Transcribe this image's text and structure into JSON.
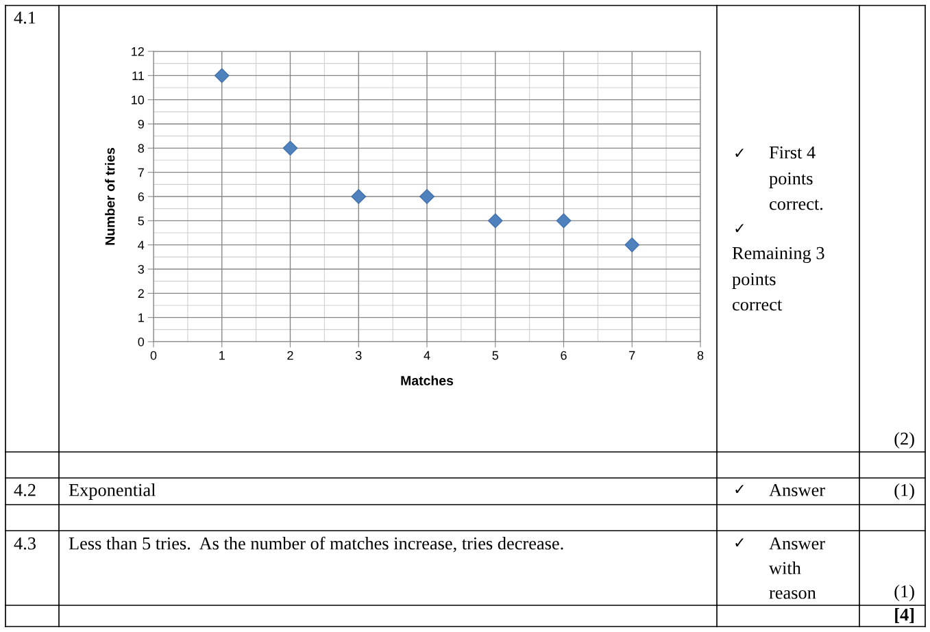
{
  "chart_data": {
    "type": "scatter",
    "xlabel": "Matches",
    "ylabel": "Number of tries",
    "x": [
      1,
      2,
      3,
      4,
      5,
      6,
      7
    ],
    "series": [
      {
        "color": "#4f81bd",
        "values": [
          11,
          8,
          6,
          6,
          5,
          5,
          4
        ]
      }
    ],
    "xlim": [
      0,
      8
    ],
    "ylim": [
      0,
      12
    ],
    "xticks": [
      0,
      1,
      2,
      3,
      4,
      5,
      6,
      7,
      8
    ],
    "yticks": [
      0,
      1,
      2,
      3,
      4,
      5,
      6,
      7,
      8,
      9,
      10,
      11,
      12
    ],
    "grid": true,
    "marker": "diamond",
    "annotations": [
      "4.1",
      "✓",
      "First 4",
      "points",
      "correct.",
      "✓",
      "Remaining 3",
      "points",
      "correct",
      "(2)",
      "4.2",
      "Exponential",
      "✓",
      "Answer",
      "(1)",
      "4.3",
      "Less than 5 tries.  As the number of matches increase, tries decrease.",
      "✓",
      "Answer",
      "with",
      "reason",
      "(1)",
      "[4]"
    ]
  }
}
